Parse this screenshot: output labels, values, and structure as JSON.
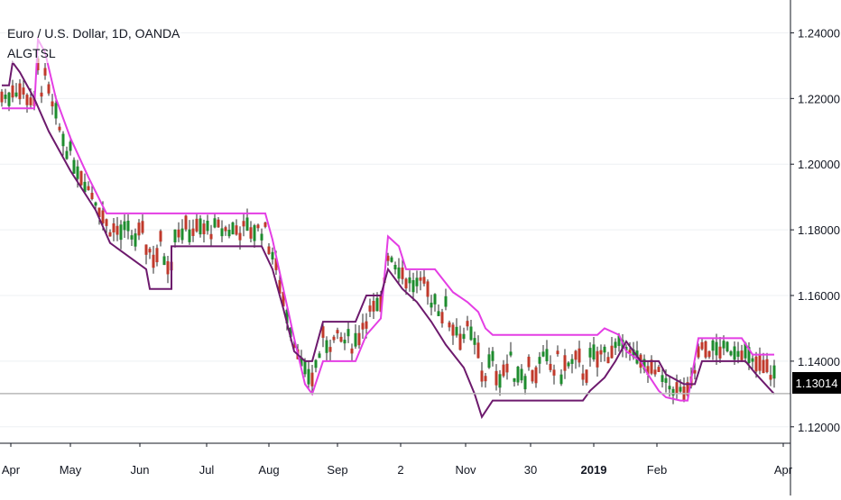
{
  "header": {
    "symbol": "Euro / U.S. Dollar, 1D, OANDA",
    "indicator": "ALGTSL"
  },
  "last_price": "1.13014",
  "colors": {
    "up": "#1e8c2e",
    "down": "#c0392b",
    "stop_inner": "#6d1a6d",
    "stop_outer": "#e43ee4",
    "last_line": "#b8b8b8"
  },
  "chart_data": {
    "type": "candlestick",
    "ylim": [
      1.115,
      1.25
    ],
    "yticks": [
      "1.24000",
      "1.22000",
      "1.20000",
      "1.18000",
      "1.16000",
      "1.14000",
      "1.12000"
    ],
    "xticks": [
      "Apr",
      "May",
      "Jun",
      "Jul",
      "Aug",
      "Sep",
      "2",
      "Nov",
      "30",
      "2019",
      "Feb",
      "Apr"
    ],
    "bold_xtick": "2019",
    "stop_line_inner": [
      [
        0,
        1.224
      ],
      [
        2,
        1.224
      ],
      [
        3,
        1.231
      ],
      [
        5,
        1.228
      ],
      [
        9,
        1.22
      ],
      [
        13,
        1.21
      ],
      [
        19,
        1.198
      ],
      [
        26,
        1.186
      ],
      [
        30,
        1.176
      ],
      [
        40,
        1.168
      ],
      [
        41,
        1.162
      ],
      [
        47,
        1.162
      ],
      [
        47,
        1.175
      ],
      [
        72,
        1.175
      ],
      [
        75,
        1.168
      ],
      [
        78,
        1.156
      ],
      [
        81,
        1.143
      ],
      [
        84,
        1.14
      ],
      [
        86,
        1.14
      ],
      [
        89,
        1.152
      ],
      [
        98,
        1.152
      ],
      [
        101,
        1.16
      ],
      [
        105,
        1.16
      ],
      [
        107,
        1.168
      ],
      [
        111,
        1.162
      ],
      [
        115,
        1.158
      ],
      [
        119,
        1.152
      ],
      [
        123,
        1.145
      ],
      [
        128,
        1.138
      ],
      [
        131,
        1.13
      ],
      [
        133,
        1.123
      ],
      [
        136,
        1.128
      ],
      [
        140,
        1.128
      ],
      [
        143,
        1.128
      ],
      [
        161,
        1.128
      ],
      [
        163,
        1.131
      ],
      [
        167,
        1.135
      ],
      [
        170,
        1.14
      ],
      [
        173,
        1.146
      ],
      [
        177,
        1.14
      ],
      [
        182,
        1.14
      ],
      [
        184,
        1.136
      ],
      [
        189,
        1.133
      ],
      [
        192,
        1.133
      ],
      [
        194,
        1.14
      ],
      [
        206,
        1.14
      ],
      [
        209,
        1.136
      ],
      [
        214,
        1.13
      ]
    ],
    "stop_line_outer": [
      [
        0,
        1.217
      ],
      [
        9,
        1.217
      ],
      [
        10,
        1.238
      ],
      [
        12,
        1.234
      ],
      [
        15,
        1.22
      ],
      [
        19,
        1.208
      ],
      [
        24,
        1.196
      ],
      [
        29,
        1.185
      ],
      [
        73,
        1.185
      ],
      [
        75,
        1.177
      ],
      [
        78,
        1.162
      ],
      [
        81,
        1.147
      ],
      [
        84,
        1.133
      ],
      [
        86,
        1.13
      ],
      [
        89,
        1.14
      ],
      [
        98,
        1.14
      ],
      [
        101,
        1.148
      ],
      [
        105,
        1.153
      ],
      [
        107,
        1.178
      ],
      [
        110,
        1.175
      ],
      [
        112,
        1.168
      ],
      [
        115,
        1.168
      ],
      [
        120,
        1.168
      ],
      [
        125,
        1.161
      ],
      [
        129,
        1.158
      ],
      [
        132,
        1.155
      ],
      [
        134,
        1.15
      ],
      [
        136,
        1.148
      ],
      [
        165,
        1.148
      ],
      [
        167,
        1.15
      ],
      [
        171,
        1.148
      ],
      [
        173,
        1.143
      ],
      [
        177,
        1.14
      ],
      [
        179,
        1.136
      ],
      [
        182,
        1.131
      ],
      [
        184,
        1.129
      ],
      [
        188,
        1.128
      ],
      [
        190,
        1.128
      ],
      [
        193,
        1.147
      ],
      [
        205,
        1.147
      ],
      [
        208,
        1.142
      ],
      [
        214,
        1.142
      ]
    ]
  }
}
